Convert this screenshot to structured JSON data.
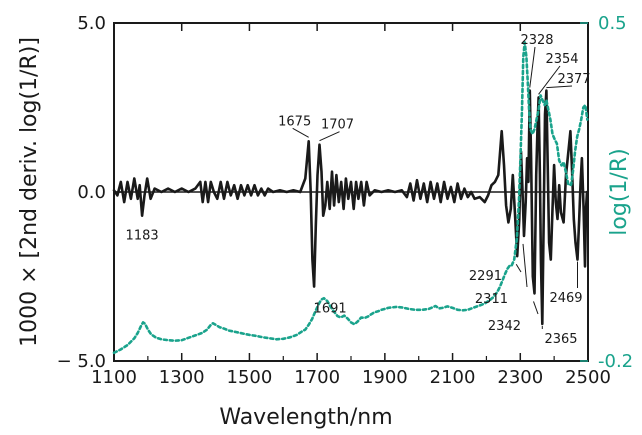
{
  "chart_data": {
    "type": "line",
    "xlabel": "Wavelength/nm",
    "ylabel": "1000 × [2nd deriv. log(1/R)]",
    "y2label": "log(1/R)",
    "xlim": [
      1100,
      2500
    ],
    "ylim": [
      -5.0,
      5.0
    ],
    "y2lim": [
      -0.2,
      0.5
    ],
    "x_ticks": [
      "1100",
      "1300",
      "1500",
      "1700",
      "1900",
      "2100",
      "2300",
      "2500"
    ],
    "y_ticks": [
      "5.0",
      "0.0",
      "− 5.0"
    ],
    "y2_ticks": [
      "0.5",
      "-0.2"
    ],
    "colors": {
      "second_derivative": "#1a1a1a",
      "absorbance": "#1aa38c"
    },
    "series": [
      {
        "axis": "left",
        "style": "solid",
        "points": [
          [
            1100,
            0.05
          ],
          [
            1110,
            -0.1
          ],
          [
            1120,
            0.3
          ],
          [
            1130,
            -0.3
          ],
          [
            1140,
            0.3
          ],
          [
            1150,
            -0.2
          ],
          [
            1160,
            0.4
          ],
          [
            1170,
            -0.2
          ],
          [
            1176,
            0.2
          ],
          [
            1183,
            -0.7
          ],
          [
            1190,
            -0.1
          ],
          [
            1198,
            0.4
          ],
          [
            1208,
            -0.2
          ],
          [
            1220,
            0.1
          ],
          [
            1240,
            0.0
          ],
          [
            1260,
            0.1
          ],
          [
            1280,
            0.0
          ],
          [
            1300,
            0.1
          ],
          [
            1320,
            0.0
          ],
          [
            1340,
            0.1
          ],
          [
            1355,
            0.3
          ],
          [
            1362,
            -0.3
          ],
          [
            1370,
            0.3
          ],
          [
            1378,
            -0.3
          ],
          [
            1386,
            0.3
          ],
          [
            1395,
            0.0
          ],
          [
            1405,
            -0.2
          ],
          [
            1415,
            0.3
          ],
          [
            1425,
            -0.2
          ],
          [
            1435,
            0.3
          ],
          [
            1445,
            -0.1
          ],
          [
            1455,
            0.2
          ],
          [
            1465,
            -0.2
          ],
          [
            1475,
            0.2
          ],
          [
            1485,
            -0.1
          ],
          [
            1495,
            0.2
          ],
          [
            1505,
            -0.1
          ],
          [
            1515,
            0.2
          ],
          [
            1525,
            -0.1
          ],
          [
            1535,
            0.1
          ],
          [
            1545,
            -0.1
          ],
          [
            1555,
            0.1
          ],
          [
            1570,
            0.0
          ],
          [
            1590,
            0.05
          ],
          [
            1610,
            0.0
          ],
          [
            1630,
            0.05
          ],
          [
            1650,
            0.0
          ],
          [
            1665,
            0.4
          ],
          [
            1675,
            1.5
          ],
          [
            1681,
            0.0
          ],
          [
            1686,
            -2.0
          ],
          [
            1691,
            -2.8
          ],
          [
            1696,
            -1.0
          ],
          [
            1701,
            0.5
          ],
          [
            1707,
            1.4
          ],
          [
            1713,
            0.6
          ],
          [
            1718,
            -0.7
          ],
          [
            1724,
            -0.4
          ],
          [
            1730,
            0.3
          ],
          [
            1737,
            -0.5
          ],
          [
            1744,
            0.6
          ],
          [
            1750,
            -0.4
          ],
          [
            1757,
            0.5
          ],
          [
            1764,
            -0.3
          ],
          [
            1771,
            0.3
          ],
          [
            1778,
            -0.5
          ],
          [
            1785,
            0.4
          ],
          [
            1792,
            -0.2
          ],
          [
            1800,
            0.3
          ],
          [
            1808,
            -0.5
          ],
          [
            1815,
            0.3
          ],
          [
            1822,
            -0.2
          ],
          [
            1830,
            0.3
          ],
          [
            1838,
            -0.4
          ],
          [
            1846,
            0.3
          ],
          [
            1855,
            -0.1
          ],
          [
            1870,
            0.05
          ],
          [
            1890,
            0.0
          ],
          [
            1910,
            0.05
          ],
          [
            1930,
            0.0
          ],
          [
            1950,
            0.05
          ],
          [
            1965,
            -0.15
          ],
          [
            1975,
            0.25
          ],
          [
            1985,
            -0.25
          ],
          [
            1995,
            0.35
          ],
          [
            2005,
            -0.2
          ],
          [
            2015,
            0.25
          ],
          [
            2025,
            -0.3
          ],
          [
            2035,
            0.3
          ],
          [
            2045,
            -0.2
          ],
          [
            2055,
            0.25
          ],
          [
            2065,
            -0.3
          ],
          [
            2075,
            0.3
          ],
          [
            2085,
            -0.2
          ],
          [
            2095,
            0.15
          ],
          [
            2105,
            -0.3
          ],
          [
            2115,
            0.25
          ],
          [
            2125,
            -0.2
          ],
          [
            2135,
            0.1
          ],
          [
            2145,
            -0.15
          ],
          [
            2155,
            0.0
          ],
          [
            2165,
            -0.2
          ],
          [
            2180,
            -0.15
          ],
          [
            2195,
            -0.3
          ],
          [
            2205,
            -0.1
          ],
          [
            2215,
            0.2
          ],
          [
            2225,
            0.3
          ],
          [
            2235,
            0.5
          ],
          [
            2245,
            1.8
          ],
          [
            2252,
            0.8
          ],
          [
            2258,
            -0.4
          ],
          [
            2265,
            -0.9
          ],
          [
            2272,
            -0.5
          ],
          [
            2278,
            0.5
          ],
          [
            2284,
            -0.6
          ],
          [
            2291,
            -1.9
          ],
          [
            2297,
            -0.8
          ],
          [
            2302,
            1.2
          ],
          [
            2306,
            0.2
          ],
          [
            2311,
            -1.3
          ],
          [
            2316,
            -0.3
          ],
          [
            2320,
            1.0
          ],
          [
            2324,
            0.3
          ],
          [
            2328,
            3.0
          ],
          [
            2332,
            1.0
          ],
          [
            2337,
            -2.5
          ],
          [
            2342,
            -3.0
          ],
          [
            2347,
            0.5
          ],
          [
            2351,
            2.0
          ],
          [
            2354,
            2.8
          ],
          [
            2358,
            0.5
          ],
          [
            2361,
            -2.0
          ],
          [
            2365,
            -3.9
          ],
          [
            2369,
            -1.0
          ],
          [
            2373,
            2.3
          ],
          [
            2377,
            3.0
          ],
          [
            2381,
            0.8
          ],
          [
            2385,
            -1.5
          ],
          [
            2390,
            -2.0
          ],
          [
            2395,
            -0.5
          ],
          [
            2400,
            0.8
          ],
          [
            2405,
            -0.3
          ],
          [
            2410,
            -0.8
          ],
          [
            2415,
            0.2
          ],
          [
            2420,
            -0.6
          ],
          [
            2428,
            -0.9
          ],
          [
            2435,
            0.5
          ],
          [
            2442,
            1.2
          ],
          [
            2448,
            1.8
          ],
          [
            2453,
            0.6
          ],
          [
            2458,
            -0.8
          ],
          [
            2463,
            -1.5
          ],
          [
            2469,
            -2.0
          ],
          [
            2474,
            -0.8
          ],
          [
            2478,
            0.3
          ],
          [
            2482,
            1.0
          ],
          [
            2487,
            -0.5
          ],
          [
            2491,
            -2.2
          ],
          [
            2494,
            -0.5
          ],
          [
            2497,
            0.0
          ]
        ]
      },
      {
        "axis": "right",
        "style": "dashed",
        "points": [
          [
            1100,
            -0.183
          ],
          [
            1120,
            -0.176
          ],
          [
            1140,
            -0.167
          ],
          [
            1160,
            -0.153
          ],
          [
            1170,
            -0.142
          ],
          [
            1180,
            -0.127
          ],
          [
            1186,
            -0.12
          ],
          [
            1192,
            -0.123
          ],
          [
            1200,
            -0.135
          ],
          [
            1210,
            -0.145
          ],
          [
            1225,
            -0.152
          ],
          [
            1240,
            -0.155
          ],
          [
            1260,
            -0.157
          ],
          [
            1280,
            -0.158
          ],
          [
            1300,
            -0.157
          ],
          [
            1320,
            -0.152
          ],
          [
            1340,
            -0.147
          ],
          [
            1360,
            -0.142
          ],
          [
            1375,
            -0.135
          ],
          [
            1385,
            -0.126
          ],
          [
            1392,
            -0.122
          ],
          [
            1400,
            -0.125
          ],
          [
            1412,
            -0.13
          ],
          [
            1425,
            -0.133
          ],
          [
            1440,
            -0.137
          ],
          [
            1460,
            -0.14
          ],
          [
            1480,
            -0.143
          ],
          [
            1500,
            -0.146
          ],
          [
            1520,
            -0.148
          ],
          [
            1540,
            -0.151
          ],
          [
            1560,
            -0.153
          ],
          [
            1580,
            -0.155
          ],
          [
            1600,
            -0.154
          ],
          [
            1620,
            -0.151
          ],
          [
            1640,
            -0.146
          ],
          [
            1655,
            -0.139
          ],
          [
            1665,
            -0.135
          ],
          [
            1675,
            -0.125
          ],
          [
            1685,
            -0.113
          ],
          [
            1693,
            -0.1
          ],
          [
            1698,
            -0.092
          ],
          [
            1705,
            -0.082
          ],
          [
            1712,
            -0.073
          ],
          [
            1720,
            -0.07
          ],
          [
            1730,
            -0.076
          ],
          [
            1740,
            -0.088
          ],
          [
            1750,
            -0.098
          ],
          [
            1760,
            -0.107
          ],
          [
            1770,
            -0.11
          ],
          [
            1780,
            -0.106
          ],
          [
            1790,
            -0.112
          ],
          [
            1800,
            -0.12
          ],
          [
            1810,
            -0.124
          ],
          [
            1820,
            -0.118
          ],
          [
            1830,
            -0.11
          ],
          [
            1840,
            -0.111
          ],
          [
            1850,
            -0.108
          ],
          [
            1860,
            -0.103
          ],
          [
            1870,
            -0.099
          ],
          [
            1880,
            -0.097
          ],
          [
            1890,
            -0.094
          ],
          [
            1900,
            -0.092
          ],
          [
            1910,
            -0.09
          ],
          [
            1920,
            -0.089
          ],
          [
            1935,
            -0.088
          ],
          [
            1950,
            -0.089
          ],
          [
            1970,
            -0.092
          ],
          [
            1990,
            -0.094
          ],
          [
            2010,
            -0.094
          ],
          [
            2030,
            -0.092
          ],
          [
            2040,
            -0.089
          ],
          [
            2050,
            -0.086
          ],
          [
            2060,
            -0.091
          ],
          [
            2070,
            -0.09
          ],
          [
            2085,
            -0.087
          ],
          [
            2100,
            -0.09
          ],
          [
            2115,
            -0.094
          ],
          [
            2130,
            -0.095
          ],
          [
            2145,
            -0.094
          ],
          [
            2160,
            -0.09
          ],
          [
            2180,
            -0.085
          ],
          [
            2195,
            -0.081
          ],
          [
            2208,
            -0.075
          ],
          [
            2220,
            -0.068
          ],
          [
            2232,
            -0.057
          ],
          [
            2240,
            -0.046
          ],
          [
            2248,
            -0.032
          ],
          [
            2255,
            -0.02
          ],
          [
            2262,
            -0.009
          ],
          [
            2268,
            -0.003
          ],
          [
            2274,
            -0.003
          ],
          [
            2282,
            0.01
          ],
          [
            2290,
            0.055
          ],
          [
            2296,
            0.13
          ],
          [
            2301,
            0.23
          ],
          [
            2305,
            0.32
          ],
          [
            2309,
            0.43
          ],
          [
            2313,
            0.46
          ],
          [
            2318,
            0.43
          ],
          [
            2322,
            0.38
          ],
          [
            2326,
            0.32
          ],
          [
            2330,
            0.28
          ],
          [
            2336,
            0.27
          ],
          [
            2342,
            0.28
          ],
          [
            2348,
            0.3
          ],
          [
            2354,
            0.32
          ],
          [
            2360,
            0.35
          ],
          [
            2366,
            0.34
          ],
          [
            2372,
            0.33
          ],
          [
            2377,
            0.34
          ],
          [
            2383,
            0.32
          ],
          [
            2389,
            0.3
          ],
          [
            2395,
            0.27
          ],
          [
            2401,
            0.26
          ],
          [
            2408,
            0.25
          ],
          [
            2415,
            0.215
          ],
          [
            2422,
            0.205
          ],
          [
            2428,
            0.212
          ],
          [
            2435,
            0.19
          ],
          [
            2442,
            0.165
          ],
          [
            2450,
            0.165
          ],
          [
            2456,
            0.195
          ],
          [
            2462,
            0.235
          ],
          [
            2468,
            0.265
          ],
          [
            2474,
            0.28
          ],
          [
            2480,
            0.3
          ],
          [
            2486,
            0.325
          ],
          [
            2492,
            0.33
          ],
          [
            2498,
            0.3
          ]
        ]
      }
    ],
    "annotations": [
      {
        "text": "1183",
        "x": 1183,
        "y": -0.7,
        "anchor": "below"
      },
      {
        "text": "1675",
        "x": 1675,
        "y": 1.5,
        "anchor": "above-left"
      },
      {
        "text": "1707",
        "x": 1707,
        "y": 1.4,
        "anchor": "above-right"
      },
      {
        "text": "1691",
        "x": 1691,
        "y": -2.8,
        "anchor": "below-right"
      },
      {
        "text": "2328",
        "x": 2328,
        "y": 3.0,
        "anchor": "top"
      },
      {
        "text": "2354",
        "x": 2354,
        "y": 2.8,
        "anchor": "top"
      },
      {
        "text": "2377",
        "x": 2377,
        "y": 3.0,
        "anchor": "top"
      },
      {
        "text": "2291",
        "x": 2291,
        "y": -1.9,
        "anchor": "left"
      },
      {
        "text": "2311",
        "x": 2311,
        "y": -1.3,
        "anchor": "left"
      },
      {
        "text": "2342",
        "x": 2342,
        "y": -3.0,
        "anchor": "left"
      },
      {
        "text": "2365",
        "x": 2365,
        "y": -3.9,
        "anchor": "bottom"
      },
      {
        "text": "2469",
        "x": 2469,
        "y": -2.0,
        "anchor": "bottom"
      }
    ]
  }
}
